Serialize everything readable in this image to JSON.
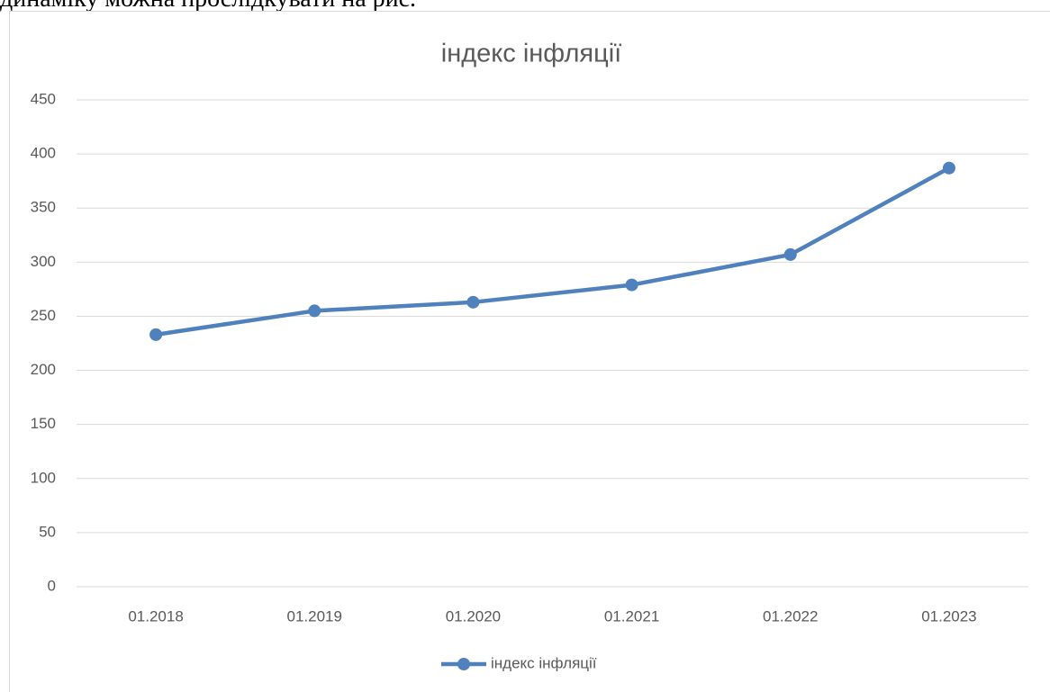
{
  "document": {
    "text": "динаміку можна прослідкувати на рис."
  },
  "chart_data": {
    "type": "line",
    "title": "індекс інфляції",
    "categories": [
      "01.2018",
      "01.2019",
      "01.2020",
      "01.2021",
      "01.2022",
      "01.2023"
    ],
    "series": [
      {
        "name": "індекс інфляції",
        "color": "#4f81bd",
        "values": [
          233,
          255,
          263,
          279,
          307,
          387
        ]
      }
    ],
    "ylim": [
      0,
      450
    ],
    "yticks": [
      0,
      50,
      100,
      150,
      200,
      250,
      300,
      350,
      400,
      450
    ],
    "grid": true,
    "legend": "bottom"
  }
}
